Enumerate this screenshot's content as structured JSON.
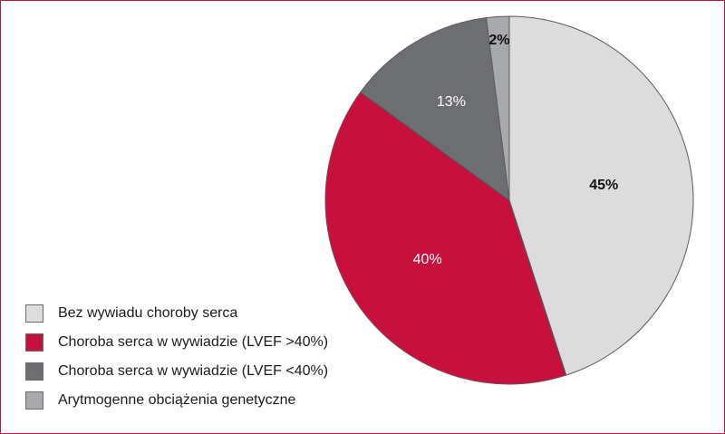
{
  "colors": {
    "frame_border": "#c8103c",
    "slice_edge": "#5a5a5a"
  },
  "chart_data": {
    "type": "pie",
    "title": "",
    "start_angle_deg": 0,
    "direction": "clockwise",
    "slices": [
      {
        "name": "Bez wywiadu choroby serca",
        "value": 45,
        "label": "45%",
        "color": "#dcdcdc",
        "label_color": "#111111",
        "label_bold": true
      },
      {
        "name": "Choroba serca w wywiadzie (LVEF >40%)",
        "value": 40,
        "label": "40%",
        "color": "#c8103c",
        "label_color": "#ffffff",
        "label_bold": false
      },
      {
        "name": "Choroba serca w wywiadzie (LVEF <40%)",
        "value": 13,
        "label": "13%",
        "color": "#6d6e71",
        "label_color": "#ffffff",
        "label_bold": false
      },
      {
        "name": "Arytmogenne obciążenia genetyczne",
        "value": 2,
        "label": "2%",
        "color": "#a7a9ac",
        "label_color": "#111111",
        "label_bold": true
      }
    ]
  },
  "legend": {
    "items": [
      {
        "label": "Bez wywiadu choroby serca",
        "color": "#dcdcdc"
      },
      {
        "label": "Choroba serca w wywiadzie (LVEF >40%)",
        "color": "#c8103c"
      },
      {
        "label": "Choroba serca w wywiadzie (LVEF <40%)",
        "color": "#6d6e71"
      },
      {
        "label": "Arytmogenne obciążenia genetyczne",
        "color": "#a7a9ac"
      }
    ]
  }
}
